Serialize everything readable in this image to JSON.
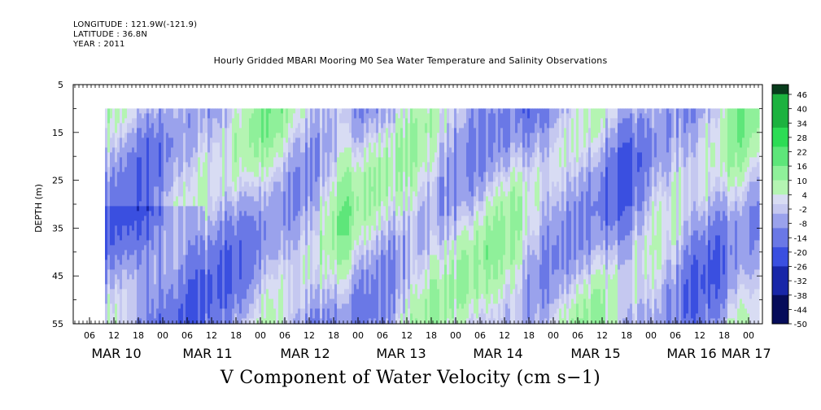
{
  "header": {
    "longitude": "LONGITUDE : 121.9W(-121.9)",
    "latitude": "LATITUDE : 36.8N",
    "year": "YEAR : 2011"
  },
  "chart_data": {
    "type": "heatmap",
    "title": "Hourly Gridded MBARI Mooring M0 Sea Water Temperature and Salinity Observations",
    "bottom_title": "V Component of Water Velocity (cm s−1)",
    "ylabel": "DEPTH (m)",
    "y_axis": {
      "ticks": [
        "5",
        "15",
        "25",
        "35",
        "45",
        "55"
      ],
      "range": [
        5,
        55
      ],
      "inverted": true
    },
    "data_extent": {
      "depth_range_m": [
        10,
        55
      ]
    },
    "x_axis": {
      "hour_ticks": [
        "06",
        "12",
        "18",
        "00",
        "06",
        "12",
        "18",
        "00",
        "06",
        "12",
        "18",
        "00",
        "06",
        "12",
        "18",
        "00",
        "06",
        "12",
        "18",
        "00",
        "06",
        "12",
        "18",
        "00",
        "06",
        "12",
        "18",
        "00"
      ],
      "day_labels": [
        "MAR 10",
        "MAR 11",
        "MAR 12",
        "MAR 13",
        "MAR 14",
        "MAR 15",
        "MAR 16",
        "MAR 17"
      ]
    },
    "colorbar": {
      "labels": [
        "46",
        "40",
        "34",
        "28",
        "22",
        "16",
        "10",
        "4",
        "-2",
        "-8",
        "-14",
        "-20",
        "-26",
        "-32",
        "-38",
        "-44",
        "-50"
      ],
      "range": [
        -50,
        50
      ],
      "colors": {
        "strong_positive": "#083d1c",
        "positive": "#2ddc55",
        "weak_positive": "#b4f4b2",
        "weak_negative": "#c5c8f0",
        "negative": "#3a4fe0",
        "strong_negative": "#060c5a"
      }
    },
    "pattern": "alternating bands of positive (green) and negative (blue/lavender) velocity tilted in time across depth"
  }
}
